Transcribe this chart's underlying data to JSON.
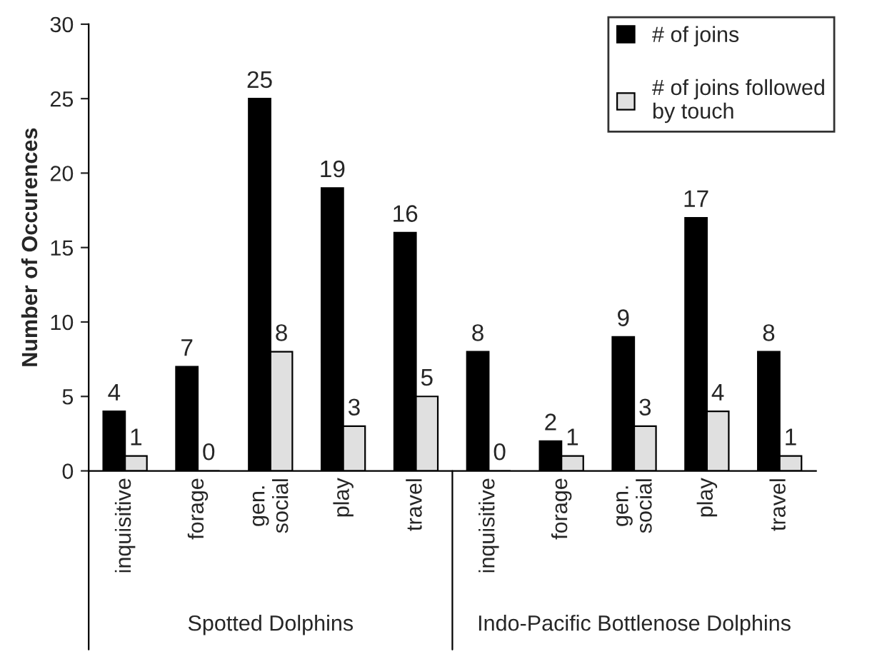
{
  "chart_data": {
    "type": "bar",
    "ylabel": "Number of Occurences",
    "categories": [
      "inquisitive",
      "forage",
      "gen.\nsocial",
      "play",
      "travel",
      "inquisitive",
      "forage",
      "gen.\nsocial",
      "play",
      "travel"
    ],
    "series": [
      {
        "name": "# of joins",
        "color": "#000000",
        "values": [
          4,
          7,
          25,
          19,
          16,
          8,
          2,
          9,
          17,
          8
        ]
      },
      {
        "name": "# of joins followed\nby touch",
        "color": "#e0e0e0",
        "values": [
          1,
          0,
          8,
          3,
          5,
          0,
          1,
          3,
          4,
          1
        ]
      }
    ],
    "annotations": [
      "Spotted Dolphins",
      "Indo-Pacific Bottlenose Dolphins"
    ],
    "ylim": [
      0,
      30
    ],
    "yticks": [
      0,
      5,
      10,
      15,
      20,
      25,
      30
    ],
    "grid": false,
    "legend": "top right",
    "data_labels": true
  }
}
